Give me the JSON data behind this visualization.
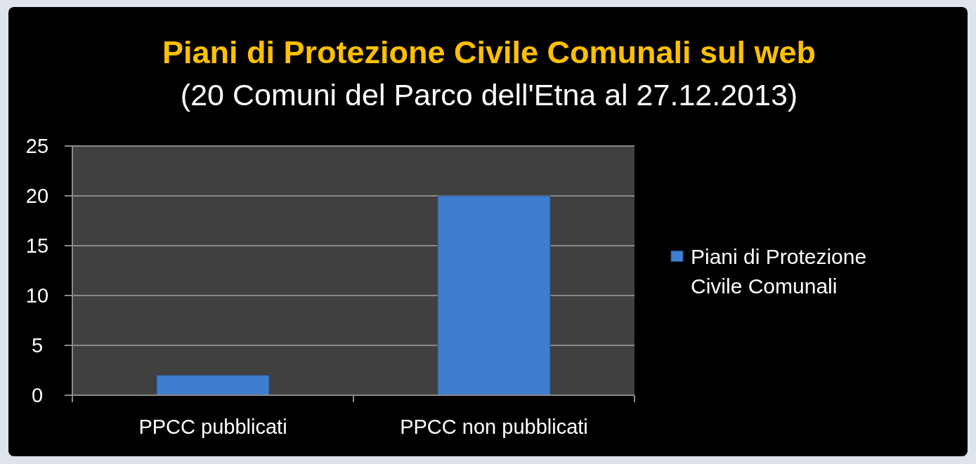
{
  "chart_data": {
    "type": "bar",
    "title": "Piani di Protezione Civile Comunali sul web",
    "subtitle": "(20 Comuni del Parco dell'Etna al 27.12.2013)",
    "categories": [
      "PPCC pubblicati",
      "PPCC non pubblicati"
    ],
    "series": [
      {
        "name": "Piani di Protezione Civile Comunali",
        "color": "#3f7ecf",
        "values": [
          2,
          20
        ]
      }
    ],
    "ylim": [
      0,
      25
    ],
    "yticks": [
      0,
      5,
      10,
      15,
      20,
      25
    ],
    "grid": "y",
    "legend": "right"
  }
}
